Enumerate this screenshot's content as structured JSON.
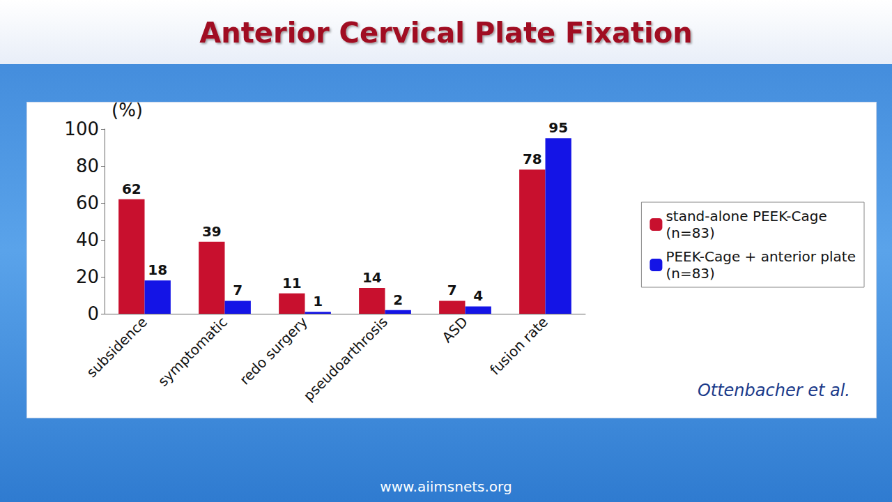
{
  "chart_data": {
    "type": "bar",
    "title": "Anterior Cervical Plate Fixation",
    "y_label": "(%)",
    "categories": [
      "subsidence",
      "symptomatic",
      "redo surgery",
      "pseudoarthrosis",
      "ASD",
      "fusion rate"
    ],
    "series": [
      {
        "name": "stand-alone PEEK-Cage (n=83)",
        "color": "#c8102e",
        "values": [
          62,
          39,
          11,
          14,
          7,
          78
        ]
      },
      {
        "name": "PEEK-Cage + anterior plate (n=83)",
        "color": "#1414e6",
        "values": [
          18,
          7,
          1,
          2,
          4,
          95
        ]
      }
    ],
    "ylim": [
      0,
      100
    ],
    "yticks": [
      0,
      20,
      40,
      60,
      80,
      100
    ],
    "grid": false,
    "legend": "right",
    "data_labels": true,
    "source": "Ottenbacher et al.",
    "footer": "www.aiimsnets.org"
  }
}
